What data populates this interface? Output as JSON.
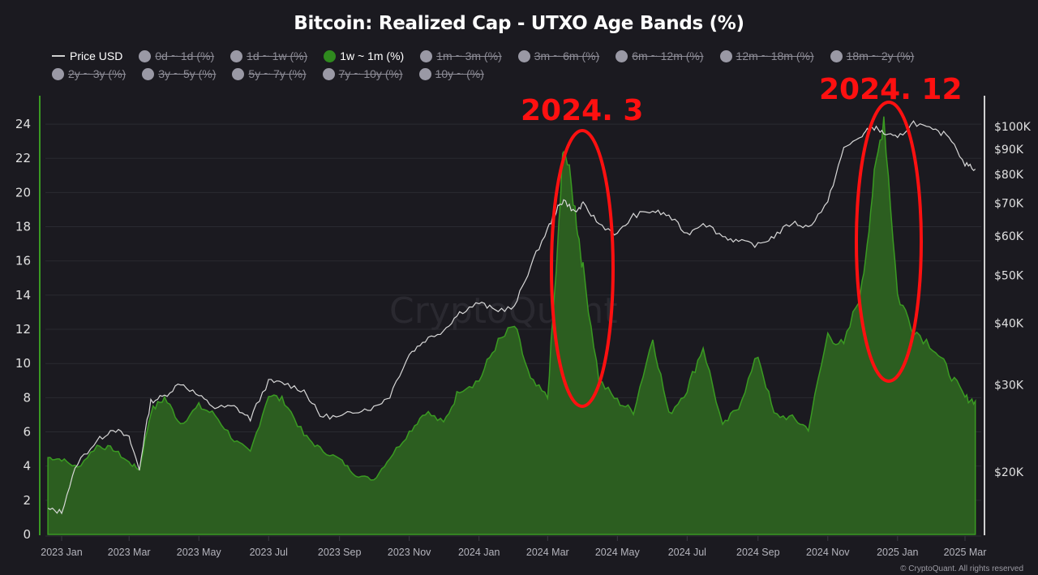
{
  "title": "Bitcoin: Realized Cap - UTXO Age Bands (%)",
  "legend": {
    "row1": [
      {
        "label": "Price USD",
        "type": "line",
        "active": true,
        "color": "#d0d0d0"
      },
      {
        "label": "0d ~ 1d (%)",
        "type": "dot",
        "active": false,
        "color": "#9a99a5"
      },
      {
        "label": "1d ~ 1w (%)",
        "type": "dot",
        "active": false,
        "color": "#9a99a5"
      },
      {
        "label": "1w ~ 1m (%)",
        "type": "dot",
        "active": true,
        "color": "#2f8a1e"
      },
      {
        "label": "1m ~ 3m (%)",
        "type": "dot",
        "active": false,
        "color": "#9a99a5"
      },
      {
        "label": "3m ~ 6m (%)",
        "type": "dot",
        "active": false,
        "color": "#9a99a5"
      },
      {
        "label": "6m ~ 12m (%)",
        "type": "dot",
        "active": false,
        "color": "#9a99a5"
      },
      {
        "label": "12m ~ 18m (%)",
        "type": "dot",
        "active": false,
        "color": "#9a99a5"
      },
      {
        "label": "18m ~ 2y (%)",
        "type": "dot",
        "active": false,
        "color": "#9a99a5"
      }
    ],
    "row2": [
      {
        "label": "2y ~ 3y (%)",
        "type": "dot",
        "active": false,
        "color": "#9a99a5"
      },
      {
        "label": "3y ~ 5y (%)",
        "type": "dot",
        "active": false,
        "color": "#9a99a5"
      },
      {
        "label": "5y ~ 7y (%)",
        "type": "dot",
        "active": false,
        "color": "#9a99a5"
      },
      {
        "label": "7y ~ 10y (%)",
        "type": "dot",
        "active": false,
        "color": "#9a99a5"
      },
      {
        "label": "10y ~ (%)",
        "type": "dot",
        "active": false,
        "color": "#9a99a5"
      }
    ]
  },
  "annotations": [
    {
      "label": "2024. 3",
      "color": "#ff1010"
    },
    {
      "label": "2024. 12",
      "color": "#ff1010"
    }
  ],
  "watermark": "CryptoQuant",
  "copyright": "© CryptoQuant. All rights reserved",
  "colors": {
    "background": "#1b1a20",
    "area_fill": "#2c5e20",
    "area_line": "#3a9a22",
    "price_line": "#d8d8d8",
    "grid": "#2a2a31",
    "annotation": "#ff1010"
  },
  "chart_data": {
    "type": "area",
    "title": "Bitcoin: Realized Cap - UTXO Age Bands (%)",
    "xlabel": "",
    "ylabel": "",
    "categories": [
      "2023 Jan",
      "2023 Mar",
      "2023 May",
      "2023 Jul",
      "2023 Sep",
      "2023 Nov",
      "2024 Jan",
      "2024 Mar",
      "2024 May",
      "2024 Jul",
      "2024 Sep",
      "2024 Nov",
      "2025 Jan",
      "2025 Mar"
    ],
    "y_left": {
      "ticks": [
        0,
        2,
        4,
        6,
        8,
        10,
        12,
        14,
        16,
        18,
        20,
        22,
        24
      ],
      "range": [
        0,
        25
      ]
    },
    "y_right": {
      "scale": "log",
      "ticks": [
        "$20K",
        "$30K",
        "$40K",
        "$50K",
        "$60K",
        "$70K",
        "$80K",
        "$90K",
        "$100K"
      ],
      "tick_values": [
        20000,
        30000,
        40000,
        50000,
        60000,
        70000,
        80000,
        90000,
        100000
      ]
    },
    "grid": true,
    "legend_position": "top",
    "series": [
      {
        "name": "1w ~ 1m (%)",
        "axis": "left",
        "type": "area",
        "x": [
          "2022-12-20",
          "2023-01-01",
          "2023-01-15",
          "2023-02-01",
          "2023-02-15",
          "2023-03-01",
          "2023-03-10",
          "2023-03-20",
          "2023-04-01",
          "2023-04-15",
          "2023-05-01",
          "2023-05-15",
          "2023-06-01",
          "2023-06-15",
          "2023-07-01",
          "2023-07-15",
          "2023-08-01",
          "2023-08-15",
          "2023-09-01",
          "2023-09-15",
          "2023-10-01",
          "2023-10-15",
          "2023-11-01",
          "2023-11-15",
          "2023-12-01",
          "2023-12-15",
          "2024-01-01",
          "2024-01-15",
          "2024-02-01",
          "2024-02-15",
          "2024-03-01",
          "2024-03-10",
          "2024-03-15",
          "2024-03-25",
          "2024-04-01",
          "2024-04-15",
          "2024-05-01",
          "2024-05-15",
          "2024-06-01",
          "2024-06-15",
          "2024-07-01",
          "2024-07-15",
          "2024-08-01",
          "2024-08-15",
          "2024-09-01",
          "2024-09-15",
          "2024-10-01",
          "2024-10-15",
          "2024-11-01",
          "2024-11-15",
          "2024-12-01",
          "2024-12-10",
          "2024-12-20",
          "2025-01-01",
          "2025-01-15",
          "2025-02-01",
          "2025-02-15",
          "2025-03-01",
          "2025-03-10"
        ],
        "values": [
          4.5,
          4.4,
          3.9,
          5.2,
          5.0,
          4.2,
          3.8,
          7.2,
          8.0,
          6.5,
          7.5,
          7.0,
          5.5,
          4.8,
          8.2,
          7.8,
          5.8,
          5.0,
          4.4,
          3.5,
          3.2,
          4.5,
          6.0,
          7.2,
          6.5,
          8.5,
          9.0,
          11.0,
          12.2,
          9.0,
          8.0,
          17.0,
          23.0,
          19.0,
          15.5,
          9.0,
          7.8,
          7.2,
          11.5,
          7.0,
          8.5,
          11.0,
          6.3,
          7.5,
          10.5,
          7.0,
          6.8,
          6.2,
          11.7,
          11.0,
          14.5,
          20.0,
          24.5,
          14.0,
          12.0,
          11.0,
          9.5,
          8.0,
          7.8
        ]
      },
      {
        "name": "Price USD",
        "axis": "right",
        "type": "line",
        "x": [
          "2022-12-20",
          "2023-01-01",
          "2023-01-15",
          "2023-02-01",
          "2023-02-15",
          "2023-03-01",
          "2023-03-10",
          "2023-03-20",
          "2023-04-01",
          "2023-04-15",
          "2023-05-01",
          "2023-05-15",
          "2023-06-01",
          "2023-06-15",
          "2023-07-01",
          "2023-07-15",
          "2023-08-01",
          "2023-08-15",
          "2023-09-01",
          "2023-09-15",
          "2023-10-01",
          "2023-10-15",
          "2023-11-01",
          "2023-11-15",
          "2023-12-01",
          "2023-12-15",
          "2024-01-01",
          "2024-01-15",
          "2024-02-01",
          "2024-02-15",
          "2024-03-01",
          "2024-03-10",
          "2024-03-15",
          "2024-03-25",
          "2024-04-01",
          "2024-04-15",
          "2024-05-01",
          "2024-05-15",
          "2024-06-01",
          "2024-06-15",
          "2024-07-01",
          "2024-07-15",
          "2024-08-01",
          "2024-08-15",
          "2024-09-01",
          "2024-09-15",
          "2024-10-01",
          "2024-10-15",
          "2024-11-01",
          "2024-11-15",
          "2024-12-01",
          "2024-12-10",
          "2024-12-20",
          "2025-01-01",
          "2025-01-15",
          "2025-02-01",
          "2025-02-15",
          "2025-03-01",
          "2025-03-10"
        ],
        "values": [
          16800,
          16600,
          20900,
          23100,
          24500,
          23400,
          20200,
          27800,
          28500,
          30300,
          28500,
          27000,
          27100,
          25600,
          30500,
          30200,
          29200,
          26000,
          25800,
          26600,
          27000,
          28500,
          34600,
          37000,
          38700,
          42000,
          44000,
          42500,
          43000,
          52000,
          62000,
          68500,
          71000,
          67000,
          69500,
          63500,
          60500,
          66000,
          67500,
          66000,
          60500,
          64000,
          60000,
          58500,
          57500,
          60000,
          64000,
          62500,
          70000,
          90000,
          96000,
          100000,
          97000,
          94500,
          102000,
          98000,
          96000,
          84000,
          82000
        ]
      }
    ],
    "annotations": [
      {
        "text": "2024. 3",
        "shape": "ellipse",
        "around": "2024-03 peak (~23%)"
      },
      {
        "text": "2024. 12",
        "shape": "ellipse",
        "around": "2024-12 peak (~24.5%)"
      }
    ]
  }
}
